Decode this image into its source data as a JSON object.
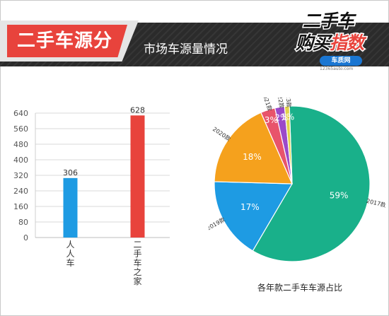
{
  "header": {
    "title": "二手车源分析",
    "subtitle": "市场车源量情况"
  },
  "logo": {
    "line1": "二手车",
    "line2a": "购买",
    "line2b": "指数",
    "badge": "车质网",
    "url": "12365auto.com"
  },
  "colors": {
    "accent_red": "#e8433c",
    "header_dark": "#2b2b2b",
    "blue": "#1e9be3",
    "teal": "#19b08a",
    "orange": "#f5a11d",
    "pink": "#e8546b",
    "purple": "#9b49c9",
    "yellow": "#e2d24a"
  },
  "chart_data": [
    {
      "type": "bar",
      "categories": [
        "人人车",
        "二手车之家"
      ],
      "values": [
        306,
        628
      ],
      "colors": [
        "#1e9be3",
        "#e8433c"
      ],
      "yticks": [
        0,
        80,
        160,
        240,
        320,
        400,
        480,
        560,
        640
      ],
      "ylim": [
        0,
        640
      ],
      "grid": true
    },
    {
      "type": "pie",
      "title": "各年款二手车车源占比",
      "slices": [
        {
          "label": "2017款",
          "value": 59,
          "display": "59%",
          "color": "#19b08a"
        },
        {
          "label": "2019款",
          "value": 17,
          "display": "17%",
          "color": "#1e9be3"
        },
        {
          "label": "2020款",
          "value": 18,
          "display": "18%",
          "color": "#f5a11d"
        },
        {
          "label": "2021款",
          "value": 3,
          "display": "3%",
          "color": "#e8546b"
        },
        {
          "label": "2022款",
          "value": 2,
          "display": "2%",
          "color": "#9b49c9"
        },
        {
          "label": "2023款",
          "value": 1,
          "display": "1%",
          "color": "#e2d24a"
        }
      ]
    }
  ]
}
